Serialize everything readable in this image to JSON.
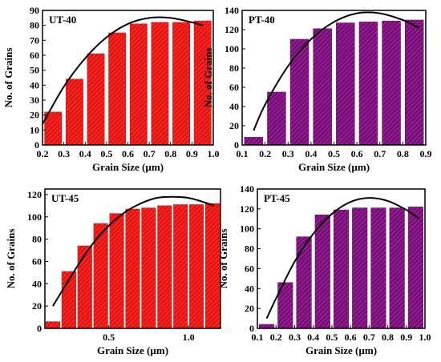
{
  "colors": {
    "red_bar": "#e8130f",
    "purple_bar": "#7b0a7b",
    "fit_line": "#000000",
    "axis": "#000000"
  },
  "chart_data": [
    {
      "id": "ut40",
      "type": "bar",
      "panel_label": "UT-40",
      "bar_color": "#e8130f",
      "xlabel": "Grain Size (µm)",
      "ylabel": "No. of Grains",
      "xlim": [
        0.2,
        1.0
      ],
      "ylim": [
        0,
        90
      ],
      "xticks": [
        0.2,
        0.3,
        0.4,
        0.5,
        0.6,
        0.7,
        0.8,
        0.9,
        1.0
      ],
      "xtick_labels": [
        "0.2",
        "0.3",
        "0.4",
        "0.5",
        "0.6",
        "0.7",
        "0.8",
        "0.9",
        "1.0"
      ],
      "yticks": [
        0,
        10,
        20,
        30,
        40,
        50,
        60,
        70,
        80,
        90
      ],
      "ytick_labels": [
        "0",
        "10",
        "20",
        "30",
        "40",
        "50",
        "60",
        "70",
        "80",
        "90"
      ],
      "bar_width": 0.08,
      "x": [
        0.25,
        0.35,
        0.45,
        0.55,
        0.65,
        0.75,
        0.85,
        0.95
      ],
      "values": [
        22,
        44,
        61,
        75,
        81,
        82,
        82,
        83
      ],
      "fit": {
        "x": [
          0.2,
          0.3,
          0.4,
          0.5,
          0.6,
          0.7,
          0.8,
          0.9,
          0.95
        ],
        "y": [
          14,
          39,
          58,
          72,
          81,
          85,
          85,
          82,
          80
        ]
      }
    },
    {
      "id": "pt40",
      "type": "bar",
      "panel_label": "PT-40",
      "bar_color": "#7b0a7b",
      "xlabel": "Grain Size (µm)",
      "ylabel": "No. of Grains",
      "xlim": [
        0.1,
        0.9
      ],
      "ylim": [
        0,
        140
      ],
      "xticks": [
        0.1,
        0.2,
        0.3,
        0.4,
        0.5,
        0.6,
        0.7,
        0.8,
        0.9
      ],
      "xtick_labels": [
        "0.1",
        "0.2",
        "0.3",
        "0.4",
        "0.5",
        "0.6",
        "0.7",
        "0.8",
        "0.9"
      ],
      "yticks": [
        0,
        20,
        40,
        60,
        80,
        100,
        120,
        140
      ],
      "ytick_labels": [
        "0",
        "20",
        "40",
        "60",
        "80",
        "100",
        "120",
        "140"
      ],
      "bar_width": 0.08,
      "x": [
        0.15,
        0.25,
        0.35,
        0.45,
        0.55,
        0.65,
        0.75,
        0.85
      ],
      "values": [
        8,
        55,
        110,
        121,
        127,
        128,
        129,
        130
      ],
      "fit": {
        "x": [
          0.15,
          0.2,
          0.3,
          0.4,
          0.5,
          0.6,
          0.7,
          0.8,
          0.87
        ],
        "y": [
          15,
          42,
          82,
          110,
          128,
          137,
          137,
          130,
          122
        ]
      }
    },
    {
      "id": "ut45",
      "type": "bar",
      "panel_label": "UT-45",
      "bar_color": "#e8130f",
      "xlabel": "Grain Size (µm)",
      "ylabel": "No. of Grains",
      "xlim": [
        0.1,
        1.2
      ],
      "ylim": [
        0,
        125
      ],
      "xticks": [
        0.5,
        1.0
      ],
      "xtick_labels": [
        "0.5",
        "1.0"
      ],
      "yticks": [
        0,
        20,
        40,
        60,
        80,
        100,
        120
      ],
      "ytick_labels": [
        "0",
        "20",
        "40",
        "60",
        "80",
        "100",
        "120"
      ],
      "bar_width": 0.088,
      "x": [
        0.15,
        0.25,
        0.35,
        0.45,
        0.55,
        0.65,
        0.75,
        0.85,
        0.95,
        1.05,
        1.15
      ],
      "values": [
        6,
        51,
        74,
        94,
        103,
        107,
        108,
        110,
        111,
        111,
        112
      ],
      "fit": {
        "x": [
          0.15,
          0.3,
          0.4,
          0.5,
          0.6,
          0.7,
          0.8,
          0.9,
          1.0,
          1.1,
          1.16
        ],
        "y": [
          20,
          55,
          76,
          92,
          104,
          112,
          117,
          118,
          117,
          113,
          110
        ]
      }
    },
    {
      "id": "pt45",
      "type": "bar",
      "panel_label": "PT-45",
      "bar_color": "#7b0a7b",
      "xlabel": "Grain Size (µm)",
      "ylabel": "No. of Grains",
      "xlim": [
        0.1,
        1.0
      ],
      "ylim": [
        0,
        140
      ],
      "xticks": [
        0.1,
        0.2,
        0.3,
        0.4,
        0.5,
        0.6,
        0.7,
        0.8,
        0.9,
        1.0
      ],
      "xtick_labels": [
        "0.1",
        "0.2",
        "0.3",
        "0.4",
        "0.5",
        "0.6",
        "0.7",
        "0.8",
        "0.9",
        "1.0"
      ],
      "yticks": [
        0,
        20,
        40,
        60,
        80,
        100,
        120,
        140
      ],
      "ytick_labels": [
        "0",
        "20",
        "40",
        "60",
        "80",
        "100",
        "120",
        "140"
      ],
      "bar_width": 0.08,
      "x": [
        0.15,
        0.25,
        0.35,
        0.45,
        0.55,
        0.65,
        0.75,
        0.85,
        0.95
      ],
      "values": [
        4,
        46,
        92,
        114,
        119,
        121,
        121,
        121,
        122
      ],
      "fit": {
        "x": [
          0.15,
          0.2,
          0.3,
          0.4,
          0.5,
          0.6,
          0.7,
          0.8,
          0.9,
          0.97
        ],
        "y": [
          10,
          30,
          67,
          95,
          115,
          127,
          131,
          128,
          119,
          110
        ]
      }
    }
  ]
}
